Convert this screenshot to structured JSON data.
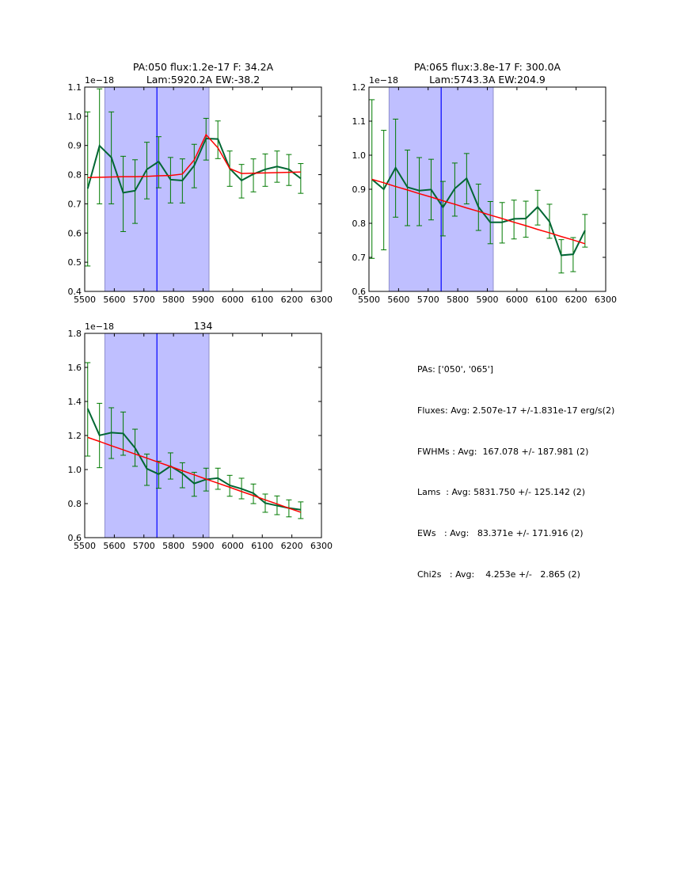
{
  "chart_data": [
    {
      "type": "line",
      "id": "pa050",
      "title_lines": [
        "PA:050 flux:1.2e-17 F: 34.2A",
        "Lam:5920.2A EW:-38.2"
      ],
      "offset_text": "1e−18",
      "xlabel": "",
      "ylabel": "",
      "xlim": [
        5500,
        6300
      ],
      "ylim": [
        0.4,
        1.1
      ],
      "xticks": [
        5500,
        5600,
        5700,
        5800,
        5900,
        6000,
        6100,
        6200,
        6300
      ],
      "yticks": [
        0.4,
        0.5,
        0.6,
        0.7,
        0.8,
        0.9,
        1.0,
        1.1
      ],
      "ytick_labels": [
        "0.4",
        "0.5",
        "0.6",
        "0.7",
        "0.8",
        "0.9",
        "1.0",
        "1.1"
      ],
      "shaded_region": [
        5568,
        5920
      ],
      "vertical_line": 5744,
      "x": [
        5510,
        5550,
        5590,
        5630,
        5670,
        5710,
        5750,
        5790,
        5830,
        5870,
        5910,
        5950,
        5990,
        6030,
        6070,
        6110,
        6150,
        6190,
        6230
      ],
      "series": [
        {
          "name": "data",
          "color": "#006633",
          "values": [
            0.752,
            0.899,
            0.859,
            0.738,
            0.745,
            0.818,
            0.845,
            0.783,
            0.78,
            0.831,
            0.924,
            0.922,
            0.821,
            0.78,
            0.802,
            0.818,
            0.828,
            0.818,
            0.787
          ],
          "err_low": [
            0.487,
            0.7,
            0.7,
            0.605,
            0.633,
            0.717,
            0.755,
            0.703,
            0.703,
            0.755,
            0.85,
            0.855,
            0.76,
            0.72,
            0.741,
            0.76,
            0.774,
            0.763,
            0.736
          ],
          "err_high": [
            1.015,
            1.094,
            1.015,
            0.863,
            0.851,
            0.911,
            0.93,
            0.859,
            0.854,
            0.904,
            0.993,
            0.984,
            0.881,
            0.835,
            0.854,
            0.871,
            0.881,
            0.869,
            0.838
          ]
        },
        {
          "name": "fit",
          "color": "#ff0000",
          "values": [
            0.79,
            0.791,
            0.792,
            0.793,
            0.793,
            0.794,
            0.796,
            0.797,
            0.802,
            0.85,
            0.937,
            0.892,
            0.821,
            0.804,
            0.805,
            0.806,
            0.807,
            0.808,
            0.809
          ]
        }
      ]
    },
    {
      "type": "line",
      "id": "pa065",
      "title_lines": [
        "PA:065 flux:3.8e-17 F: 300.0A",
        "Lam:5743.3A EW:204.9"
      ],
      "offset_text": "1e−18",
      "xlabel": "",
      "ylabel": "",
      "xlim": [
        5500,
        6300
      ],
      "ylim": [
        0.6,
        1.2
      ],
      "xticks": [
        5500,
        5600,
        5700,
        5800,
        5900,
        6000,
        6100,
        6200,
        6300
      ],
      "yticks": [
        0.6,
        0.7,
        0.8,
        0.9,
        1.0,
        1.1,
        1.2
      ],
      "ytick_labels": [
        "0.6",
        "0.7",
        "0.8",
        "0.9",
        "1.0",
        "1.1",
        "1.2"
      ],
      "shaded_region": [
        5568,
        5920
      ],
      "vertical_line": 5744,
      "x": [
        5510,
        5550,
        5590,
        5630,
        5670,
        5710,
        5750,
        5790,
        5830,
        5870,
        5910,
        5950,
        5990,
        6030,
        6070,
        6110,
        6150,
        6190,
        6230
      ],
      "series": [
        {
          "name": "data",
          "color": "#006633",
          "values": [
            0.929,
            0.9,
            0.963,
            0.906,
            0.896,
            0.899,
            0.847,
            0.902,
            0.932,
            0.848,
            0.803,
            0.803,
            0.813,
            0.814,
            0.848,
            0.805,
            0.706,
            0.709,
            0.779
          ],
          "err_low": [
            0.697,
            0.722,
            0.818,
            0.793,
            0.793,
            0.81,
            0.763,
            0.821,
            0.857,
            0.779,
            0.74,
            0.742,
            0.754,
            0.759,
            0.795,
            0.756,
            0.654,
            0.658,
            0.73
          ],
          "err_high": [
            1.163,
            1.073,
            1.106,
            1.015,
            0.993,
            0.988,
            0.923,
            0.977,
            1.005,
            0.915,
            0.864,
            0.861,
            0.868,
            0.865,
            0.897,
            0.856,
            0.752,
            0.758,
            0.826
          ]
        },
        {
          "name": "fit",
          "color": "#ff0000",
          "values": [
            0.929,
            0.919,
            0.908,
            0.898,
            0.887,
            0.877,
            0.866,
            0.856,
            0.845,
            0.835,
            0.824,
            0.814,
            0.803,
            0.793,
            0.782,
            0.772,
            0.761,
            0.751,
            0.74
          ]
        }
      ]
    },
    {
      "type": "line",
      "id": "pa134",
      "title_lines": [
        "134"
      ],
      "offset_text": "1e−18",
      "xlabel": "",
      "ylabel": "",
      "xlim": [
        5500,
        6300
      ],
      "ylim": [
        0.6,
        1.8
      ],
      "xticks": [
        5500,
        5600,
        5700,
        5800,
        5900,
        6000,
        6100,
        6200,
        6300
      ],
      "yticks": [
        0.6,
        0.8,
        1.0,
        1.2,
        1.4,
        1.6,
        1.8
      ],
      "ytick_labels": [
        "0.6",
        "0.8",
        "1.0",
        "1.2",
        "1.4",
        "1.6",
        "1.8"
      ],
      "shaded_region": [
        5568,
        5920
      ],
      "vertical_line": 5744,
      "x": [
        5510,
        5550,
        5590,
        5630,
        5670,
        5710,
        5750,
        5790,
        5830,
        5870,
        5910,
        5950,
        5990,
        6030,
        6070,
        6110,
        6150,
        6190,
        6230
      ],
      "series": [
        {
          "name": "data",
          "color": "#006633",
          "values": [
            1.358,
            1.201,
            1.217,
            1.212,
            1.127,
            1.005,
            0.973,
            1.02,
            0.977,
            0.918,
            0.942,
            0.95,
            0.907,
            0.887,
            0.861,
            0.803,
            0.788,
            0.774,
            0.764
          ],
          "err_low": [
            1.079,
            1.011,
            1.065,
            1.084,
            1.019,
            0.907,
            0.89,
            0.944,
            0.893,
            0.843,
            0.874,
            0.884,
            0.843,
            0.828,
            0.8,
            0.749,
            0.735,
            0.722,
            0.712
          ],
          "err_high": [
            1.628,
            1.389,
            1.363,
            1.338,
            1.237,
            1.091,
            1.049,
            1.098,
            1.04,
            0.984,
            1.008,
            1.008,
            0.966,
            0.949,
            0.915,
            0.856,
            0.845,
            0.822,
            0.81
          ]
        },
        {
          "name": "fit",
          "color": "#ff0000",
          "values": [
            1.189,
            1.165,
            1.14,
            1.116,
            1.091,
            1.067,
            1.042,
            1.018,
            0.993,
            0.969,
            0.944,
            0.92,
            0.896,
            0.871,
            0.847,
            0.822,
            0.798,
            0.773,
            0.749
          ]
        }
      ]
    }
  ],
  "colors": {
    "data_line": "#006633",
    "error_bars": "#007a00",
    "fit_line": "#ff0000",
    "shaded_region": "#bfbfff",
    "shade_edge": "#8f8fcc",
    "vertical_line": "#0000ff"
  },
  "stats": {
    "lines": [
      "PAs: ['050', '065']",
      "Fluxes: Avg: 2.507e-17 +/-1.831e-17 erg/s(2)",
      "FWHMs : Avg:  167.078 +/- 187.981 (2)",
      "Lams  : Avg: 5831.750 +/- 125.142 (2)",
      "EWs   : Avg:   83.371e +/- 171.916 (2)",
      "Chi2s   : Avg:    4.253e +/-   2.865 (2)"
    ]
  }
}
